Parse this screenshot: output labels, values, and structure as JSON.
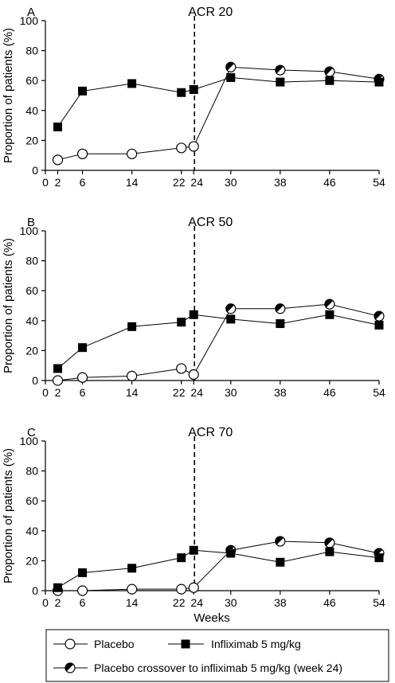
{
  "chart_data": [
    {
      "type": "line",
      "panel": "A",
      "annotation": "ACR 20",
      "reference_x": 24,
      "ylabel": "Proportion of patients (%)",
      "xlabel": "",
      "ylim": [
        0,
        100
      ],
      "yticks": [
        0,
        20,
        40,
        60,
        80,
        100
      ],
      "xticks": [
        0,
        2,
        6,
        14,
        22,
        24,
        30,
        38,
        46,
        54
      ],
      "series": [
        {
          "key": "placebo",
          "x": [
            2,
            6,
            14,
            22,
            24
          ],
          "values": [
            7,
            11,
            11,
            15,
            16
          ]
        },
        {
          "key": "infliximab",
          "x": [
            2,
            6,
            14,
            22,
            24,
            30,
            38,
            46,
            54
          ],
          "values": [
            29,
            53,
            58,
            52,
            54,
            62,
            59,
            60,
            59
          ]
        },
        {
          "key": "crossover",
          "x": [
            24,
            30,
            38,
            46,
            54
          ],
          "values": [
            16,
            69,
            67,
            66,
            61
          ]
        }
      ]
    },
    {
      "type": "line",
      "panel": "B",
      "annotation": "ACR 50",
      "reference_x": 24,
      "ylabel": "Proportion of patients (%)",
      "xlabel": "",
      "ylim": [
        0,
        100
      ],
      "yticks": [
        0,
        20,
        40,
        60,
        80,
        100
      ],
      "xticks": [
        0,
        2,
        6,
        14,
        22,
        24,
        30,
        38,
        46,
        54
      ],
      "series": [
        {
          "key": "placebo",
          "x": [
            2,
            6,
            14,
            22,
            24
          ],
          "values": [
            0,
            2,
            3,
            8,
            4
          ]
        },
        {
          "key": "infliximab",
          "x": [
            2,
            6,
            14,
            22,
            24,
            30,
            38,
            46,
            54
          ],
          "values": [
            8,
            22,
            36,
            39,
            44,
            41,
            38,
            44,
            37
          ]
        },
        {
          "key": "crossover",
          "x": [
            24,
            30,
            38,
            46,
            54
          ],
          "values": [
            4,
            48,
            48,
            51,
            43
          ]
        }
      ]
    },
    {
      "type": "line",
      "panel": "C",
      "annotation": "ACR 70",
      "reference_x": 24,
      "ylabel": "Proportion of patients (%)",
      "xlabel": "Weeks",
      "ylim": [
        0,
        100
      ],
      "yticks": [
        0,
        20,
        40,
        60,
        80,
        100
      ],
      "xticks": [
        0,
        2,
        6,
        14,
        22,
        24,
        30,
        38,
        46,
        54
      ],
      "series": [
        {
          "key": "placebo",
          "x": [
            2,
            6,
            14,
            22,
            24
          ],
          "values": [
            0,
            0,
            1,
            1,
            2
          ]
        },
        {
          "key": "infliximab",
          "x": [
            2,
            6,
            14,
            22,
            24,
            30,
            38,
            46,
            54
          ],
          "values": [
            2,
            12,
            15,
            22,
            27,
            25,
            19,
            26,
            22
          ]
        },
        {
          "key": "crossover",
          "x": [
            24,
            30,
            38,
            46,
            54
          ],
          "values": [
            2,
            27,
            33,
            32,
            25
          ]
        }
      ]
    }
  ],
  "legend": {
    "placement": "bottom",
    "items": [
      {
        "key": "placebo",
        "label": "Placebo"
      },
      {
        "key": "infliximab",
        "label": "Infliximab 5 mg/kg"
      },
      {
        "key": "crossover",
        "label": "Placebo crossover to infliximab 5 mg/kg (week 24)"
      }
    ]
  }
}
